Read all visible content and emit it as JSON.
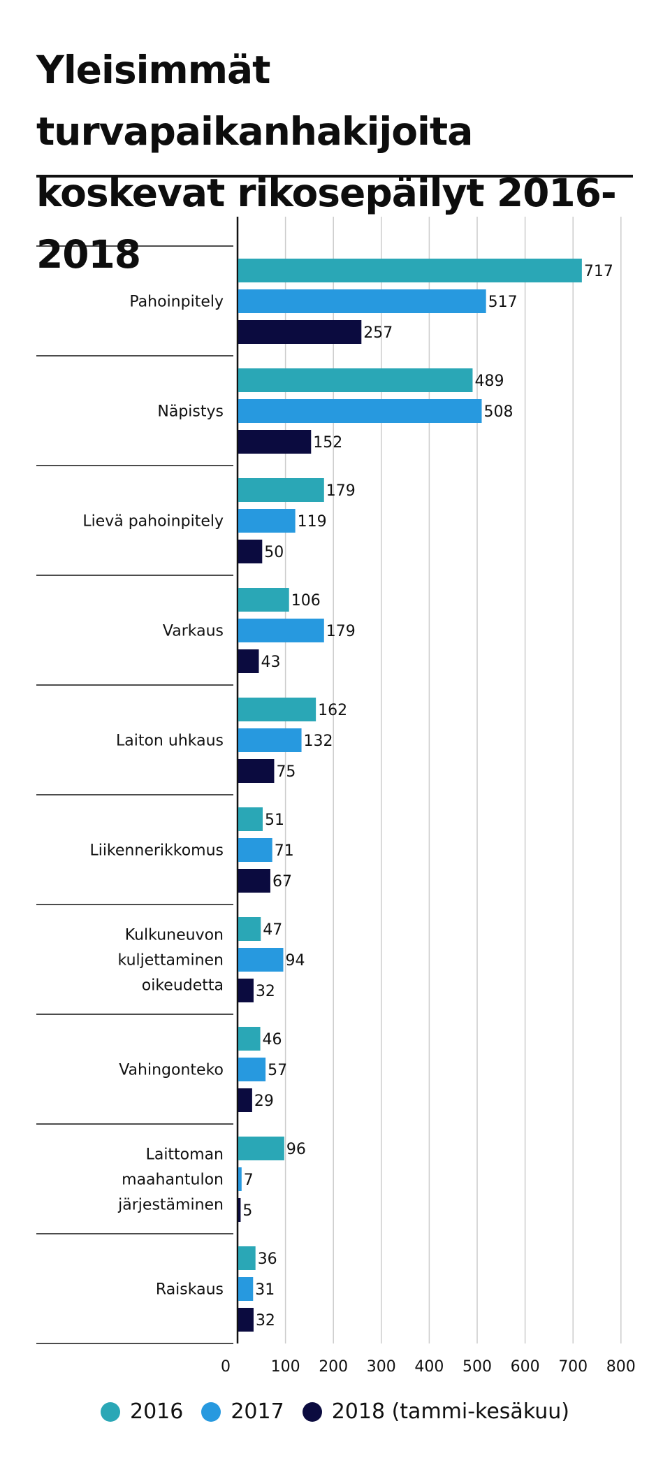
{
  "title": "Yleisimmät turvapaikanhakijoita koskevat rikosepäilyt 2016-2018",
  "colors": {
    "s2016": "#2aa7b6",
    "s2017": "#2799df",
    "s2018": "#0b0b3f",
    "grid": "#cccccc",
    "axis": "#111111"
  },
  "chart_data": {
    "type": "bar",
    "orientation": "horizontal",
    "categories": [
      "Pahoinpitely",
      "Näpistys",
      "Lievä pahoinpitely",
      "Varkaus",
      "Laiton uhkaus",
      "Liikennerikkomus",
      "Kulkuneuvon kuljettaminen oikeudetta",
      "Vahingonteko",
      "Laittoman maahantulon järjestäminen",
      "Raiskaus"
    ],
    "series": [
      {
        "name": "2016",
        "values": [
          717,
          489,
          179,
          106,
          162,
          51,
          47,
          46,
          96,
          36
        ]
      },
      {
        "name": "2017",
        "values": [
          517,
          508,
          119,
          179,
          132,
          71,
          94,
          57,
          7,
          31
        ]
      },
      {
        "name": "2018 (tammi-kesäkuu)",
        "values": [
          257,
          152,
          50,
          43,
          75,
          67,
          32,
          29,
          5,
          32
        ]
      }
    ],
    "xlim": [
      0,
      800
    ],
    "xticks": [
      0,
      100,
      200,
      300,
      400,
      500,
      600,
      700,
      800
    ],
    "grid": true,
    "legend_position": "bottom"
  }
}
